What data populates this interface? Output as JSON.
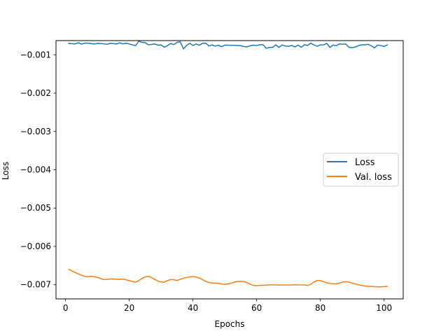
{
  "chart_data": {
    "type": "line",
    "title": "",
    "xlabel": "Epochs",
    "ylabel": "Loss",
    "xlim": [
      -3.0,
      106.0
    ],
    "ylim": [
      -0.00737,
      -0.00063
    ],
    "x_ticks": [
      0,
      20,
      40,
      60,
      80,
      100
    ],
    "x_tick_labels": [
      "0",
      "20",
      "40",
      "60",
      "80",
      "100"
    ],
    "y_ticks": [
      -0.007,
      -0.006,
      -0.005,
      -0.004,
      -0.003,
      -0.002,
      -0.001
    ],
    "y_tick_labels": [
      "−0.007",
      "−0.006",
      "−0.005",
      "−0.004",
      "−0.003",
      "−0.002",
      "−0.001"
    ],
    "grid": false,
    "legend_position": "center-right",
    "series": [
      {
        "name": "Loss",
        "color": "#1f77b4",
        "x": [
          1,
          2,
          3,
          4,
          5,
          6,
          7,
          8,
          9,
          10,
          11,
          12,
          13,
          14,
          15,
          16,
          17,
          18,
          19,
          20,
          21,
          22,
          23,
          24,
          25,
          26,
          27,
          28,
          29,
          30,
          31,
          32,
          33,
          34,
          35,
          36,
          37,
          38,
          39,
          40,
          41,
          42,
          43,
          44,
          45,
          46,
          47,
          48,
          49,
          50,
          51,
          52,
          53,
          54,
          55,
          56,
          57,
          58,
          59,
          60,
          61,
          62,
          63,
          64,
          65,
          66,
          67,
          68,
          69,
          70,
          71,
          72,
          73,
          74,
          75,
          76,
          77,
          78,
          79,
          80,
          81,
          82,
          83,
          84,
          85,
          86,
          87,
          88,
          89,
          90,
          91,
          92,
          93,
          94,
          95,
          96,
          97,
          98,
          99,
          100,
          101
        ],
        "values": [
          -0.000706,
          -0.00071,
          -0.000716,
          -0.000686,
          -0.000723,
          -0.000697,
          -0.000697,
          -0.000708,
          -0.000719,
          -0.000704,
          -0.000706,
          -0.000714,
          -0.000727,
          -0.000701,
          -0.000708,
          -0.000719,
          -0.000689,
          -0.000716,
          -0.000699,
          -0.000718,
          -0.000741,
          -0.00076,
          -0.000642,
          -0.000677,
          -0.000682,
          -0.000739,
          -0.00073,
          -0.000717,
          -0.000749,
          -0.000743,
          -0.000804,
          -0.00076,
          -0.000705,
          -0.000734,
          -0.000677,
          -0.000659,
          -0.000847,
          -0.000755,
          -0.000701,
          -0.000757,
          -0.00072,
          -0.00075,
          -0.0007,
          -0.000696,
          -0.000771,
          -0.000741,
          -0.000775,
          -0.000749,
          -0.000788,
          -0.000749,
          -0.000749,
          -0.000753,
          -0.000754,
          -0.000759,
          -0.000763,
          -0.000786,
          -0.000794,
          -0.000762,
          -0.000748,
          -0.000759,
          -0.000737,
          -0.000738,
          -0.00083,
          -0.000809,
          -0.000807,
          -0.000742,
          -0.00081,
          -0.000743,
          -0.000771,
          -0.00078,
          -0.000756,
          -0.000794,
          -0.000747,
          -0.000805,
          -0.000738,
          -0.000755,
          -0.000697,
          -0.000745,
          -0.000777,
          -0.000742,
          -0.00074,
          -0.000703,
          -0.000808,
          -0.000744,
          -0.000763,
          -0.000716,
          -0.000724,
          -0.00072,
          -0.000806,
          -0.000814,
          -0.000795,
          -0.00076,
          -0.00074,
          -0.00074,
          -0.000727,
          -0.000767,
          -0.000818,
          -0.000746,
          -0.000759,
          -0.000781,
          -0.000741
        ]
      },
      {
        "name": "Val. loss",
        "color": "#ff7f0e",
        "x": [
          1,
          2,
          3,
          4,
          5,
          6,
          7,
          8,
          9,
          10,
          11,
          12,
          13,
          14,
          15,
          16,
          17,
          18,
          19,
          20,
          21,
          22,
          23,
          24,
          25,
          26,
          27,
          28,
          29,
          30,
          31,
          32,
          33,
          34,
          35,
          36,
          37,
          38,
          39,
          40,
          41,
          42,
          43,
          44,
          45,
          46,
          47,
          48,
          49,
          50,
          51,
          52,
          53,
          54,
          55,
          56,
          57,
          58,
          59,
          60,
          61,
          62,
          63,
          64,
          65,
          66,
          67,
          68,
          69,
          70,
          71,
          72,
          73,
          74,
          75,
          76,
          77,
          78,
          79,
          80,
          81,
          82,
          83,
          84,
          85,
          86,
          87,
          88,
          89,
          90,
          91,
          92,
          93,
          94,
          95,
          96,
          97,
          98,
          99,
          100,
          101
        ],
        "values": [
          -0.0066,
          -0.00664,
          -0.006683,
          -0.00672,
          -0.006753,
          -0.006783,
          -0.00679,
          -0.00678,
          -0.00679,
          -0.00681,
          -0.00684,
          -0.006865,
          -0.00686,
          -0.006849,
          -0.00685,
          -0.006858,
          -0.00686,
          -0.006851,
          -0.00687,
          -0.006895,
          -0.006915,
          -0.006935,
          -0.00689,
          -0.006835,
          -0.006795,
          -0.006785,
          -0.00681,
          -0.006862,
          -0.006905,
          -0.006928,
          -0.006935,
          -0.00689,
          -0.006865,
          -0.00687,
          -0.00689,
          -0.00686,
          -0.00683,
          -0.00681,
          -0.006798,
          -0.00679,
          -0.0068,
          -0.006826,
          -0.006869,
          -0.006912,
          -0.006944,
          -0.006955,
          -0.006958,
          -0.006962,
          -0.006981,
          -0.00699,
          -0.006979,
          -0.00696,
          -0.00693,
          -0.006915,
          -0.006912,
          -0.00692,
          -0.006945,
          -0.00699,
          -0.00702,
          -0.007025,
          -0.007018,
          -0.007015,
          -0.00701,
          -0.007005,
          -0.007005,
          -0.007005,
          -0.00701,
          -0.007006,
          -0.007006,
          -0.007006,
          -0.007006,
          -0.007,
          -0.007005,
          -0.007006,
          -0.007002,
          -0.00702,
          -0.00699,
          -0.006925,
          -0.00689,
          -0.006895,
          -0.00692,
          -0.006952,
          -0.006965,
          -0.006975,
          -0.006975,
          -0.006955,
          -0.00693,
          -0.00692,
          -0.006933,
          -0.00696,
          -0.00698,
          -0.007,
          -0.00702,
          -0.007034,
          -0.00704,
          -0.007045,
          -0.00705,
          -0.007055,
          -0.007055,
          -0.00705,
          -0.00704
        ]
      }
    ]
  }
}
